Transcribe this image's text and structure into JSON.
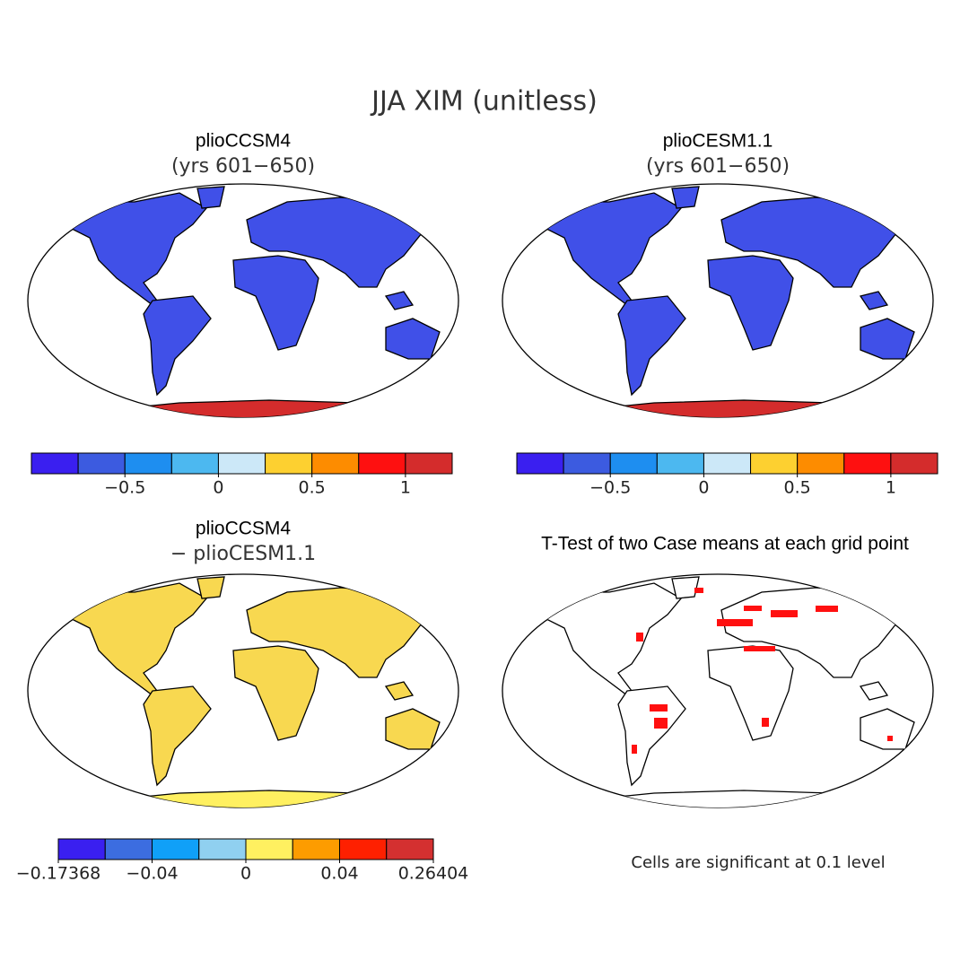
{
  "title": "JJA XIM (unitless)",
  "panels": [
    {
      "title": "plioCCSM4",
      "subtitle": "(yrs 601−650)"
    },
    {
      "title": "plioCESM1.1",
      "subtitle": "(yrs 601−650)"
    },
    {
      "title": "plioCCSM4",
      "subtitle": "− plioCESM1.1"
    },
    {
      "title": "T-Test of two Case means at each grid point"
    }
  ],
  "colorbars": [
    {
      "colors": [
        "#3a1ff0",
        "#3c5be0",
        "#1e8ef0",
        "#4cb8f0",
        "#cce8f8",
        "#fdd030",
        "#fd8c00",
        "#fe1010",
        "#d42c2c"
      ],
      "lim": [
        -1,
        1.25
      ],
      "ticks": [
        {
          "value": -0.5,
          "label": "−0.5"
        },
        0,
        0.5,
        1
      ]
    },
    {
      "colors": [
        "#3a1ff0",
        "#3c5be0",
        "#1e8ef0",
        "#4cb8f0",
        "#cce8f8",
        "#fdd030",
        "#fd8c00",
        "#fe1010",
        "#d42c2c"
      ],
      "lim": [
        -1,
        1.25
      ],
      "ticks": [
        {
          "value": -0.5,
          "label": "−0.5"
        },
        0,
        0.5,
        1
      ]
    },
    {
      "colors": [
        "#3a1ff0",
        "#3c6de0",
        "#10a0f8",
        "#90d0f0",
        "#fff060",
        "#fd9c00",
        "#fe2000",
        "#d43030"
      ],
      "boundaries": [
        {
          "value": -0.17368,
          "label": "−0.17368"
        },
        null,
        {
          "value": -0.04,
          "label": "−0.04"
        },
        null,
        0,
        null,
        0.04,
        null,
        0.26404
      ]
    }
  ],
  "note": "Cells are significant at 0.1 level"
}
